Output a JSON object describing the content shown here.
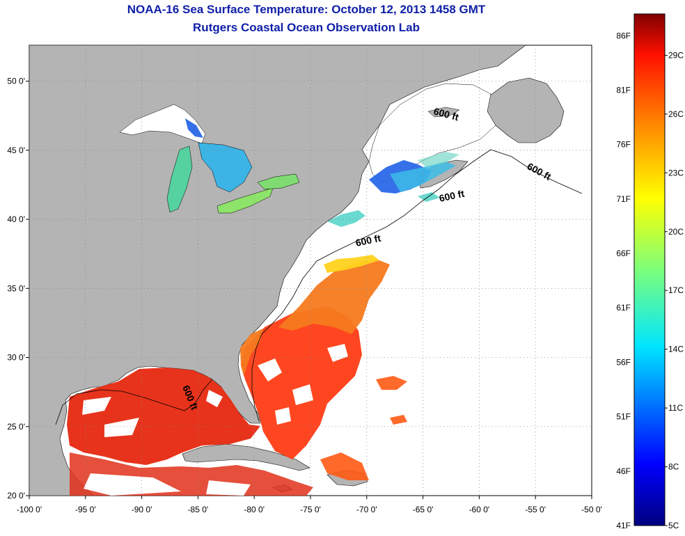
{
  "title": "NOAA-16 Sea Surface Temperature:  October 12, 2013 1458 GMT",
  "subtitle": "Rutgers Coastal Ocean Observation Lab",
  "lon_ticks": [
    "-100 0'",
    "-95 0'",
    "-90 0'",
    "-85 0'",
    "-80 0'",
    "-75 0'",
    "-70 0'",
    "-65 0'",
    "-60 0'",
    "-55 0'",
    "-50 0'"
  ],
  "lat_ticks": [
    "20 0'",
    "25 0'",
    "30 0'",
    "35 0'",
    "40 0'",
    "45 0'",
    "50 0'"
  ],
  "isobath_label": "600 ft",
  "colorbar": {
    "f_labels": [
      "86F",
      "81F",
      "76F",
      "71F",
      "66F",
      "61F",
      "56F",
      "51F",
      "46F",
      "41F"
    ],
    "c_labels": [
      "29C",
      "26C",
      "23C",
      "20C",
      "17C",
      "14C",
      "11C",
      "8C",
      "5C"
    ]
  },
  "colors": {
    "land": "#b4b4b4",
    "title": "#1020a8",
    "grid": "#888888"
  }
}
